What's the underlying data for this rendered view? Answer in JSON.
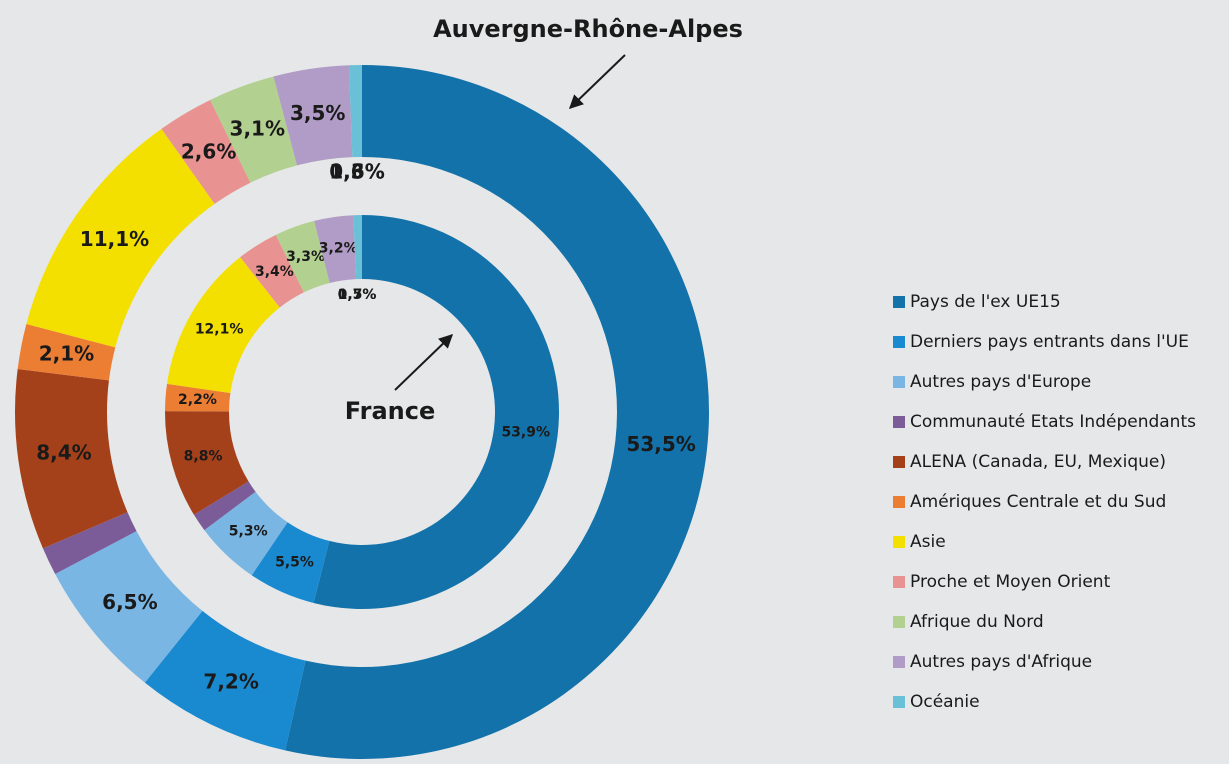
{
  "chart_data": {
    "type": "donut",
    "categories": [
      "Pays de l'ex UE15",
      "Derniers pays entrants dans l'UE",
      "Autres pays d'Europe",
      "Communauté Etats Indépendants",
      "ALENA (Canada, EU, Mexique)",
      "Amériques Centrale et du Sud",
      "Asie",
      "Proche et Moyen Orient",
      "Afrique du Nord",
      "Autres pays d'Afrique",
      "Océanie"
    ],
    "colors": [
      "#1272a9",
      "#1a8ad0",
      "#7ab6e3",
      "#7b5c98",
      "#a5411a",
      "#ec7e34",
      "#f4e000",
      "#e89391",
      "#b2d08f",
      "#b09cc6",
      "#6ac0d6"
    ],
    "series": [
      {
        "name": "Auvergne-Rhône-Alpes",
        "values": [
          53.5,
          7.2,
          6.5,
          1.3,
          8.4,
          2.1,
          11.1,
          2.6,
          3.1,
          3.5,
          0.6
        ],
        "value_labels": [
          "53,5%",
          "7,2%",
          "6,5%",
          "1,3%",
          "8,4%",
          "2,1%",
          "11,1%",
          "2,6%",
          "3,1%",
          "3,5%",
          "0,6%"
        ]
      },
      {
        "name": "France",
        "values": [
          53.9,
          5.5,
          5.3,
          1.5,
          8.8,
          2.2,
          12.1,
          3.4,
          3.3,
          3.2,
          0.7
        ],
        "value_labels": [
          "53,9%",
          "5,5%",
          "5,3%",
          "1,5%",
          "8,8%",
          "2,2%",
          "12,1%",
          "3,4%",
          "3,3%",
          "3,2%",
          "0,7%"
        ]
      }
    ]
  }
}
